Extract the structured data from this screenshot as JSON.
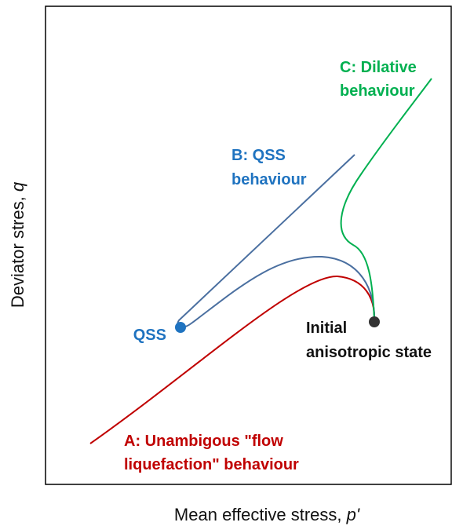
{
  "axes": {
    "y_label": {
      "text": "Deviator stres, ",
      "symbol": "q"
    },
    "x_label": {
      "text": "Mean effective stress, ",
      "symbol": "p'"
    }
  },
  "labels": {
    "dilative": [
      "C: Dilative",
      "behaviour"
    ],
    "qss_behaviour": [
      "B: QSS",
      "behaviour"
    ],
    "qss_point": "QSS",
    "initial": [
      "Initial",
      "anisotropic state"
    ],
    "flow": [
      "A: Unambigous \"flow",
      "liquefaction\" behaviour"
    ]
  }
}
